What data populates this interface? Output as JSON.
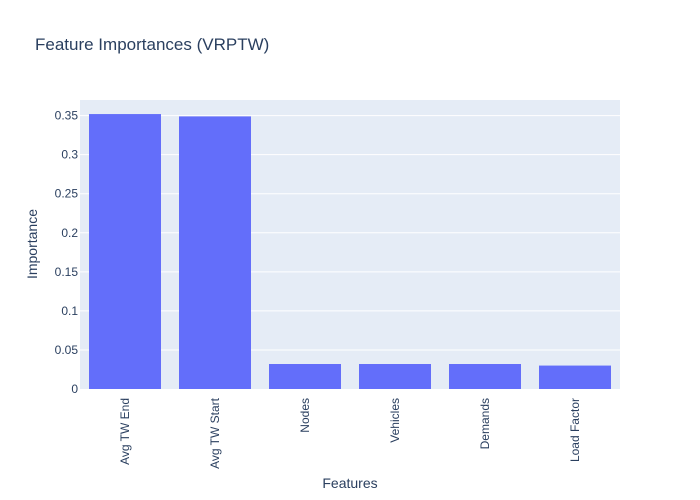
{
  "chart_data": {
    "type": "bar",
    "title": "Feature Importances (VRPTW)",
    "xlabel": "Features",
    "ylabel": "Importance",
    "categories": [
      "Avg TW End",
      "Avg TW Start",
      "Nodes",
      "Vehicles",
      "Demands",
      "Load Factor"
    ],
    "values": [
      0.352,
      0.349,
      0.032,
      0.032,
      0.032,
      0.03
    ],
    "ylim": [
      0,
      0.37
    ],
    "yticks": [
      0,
      0.05,
      0.1,
      0.15,
      0.2,
      0.25,
      0.3,
      0.35
    ],
    "ytick_labels": [
      "0",
      "0.05",
      "0.1",
      "0.15",
      "0.2",
      "0.25",
      "0.3",
      "0.35"
    ],
    "grid": true,
    "legend": "none"
  },
  "colors": {
    "bar": "#636efa",
    "plot_background": "#e5ecf6",
    "gridline": "#ffffff",
    "text": "#2a3f5f"
  }
}
